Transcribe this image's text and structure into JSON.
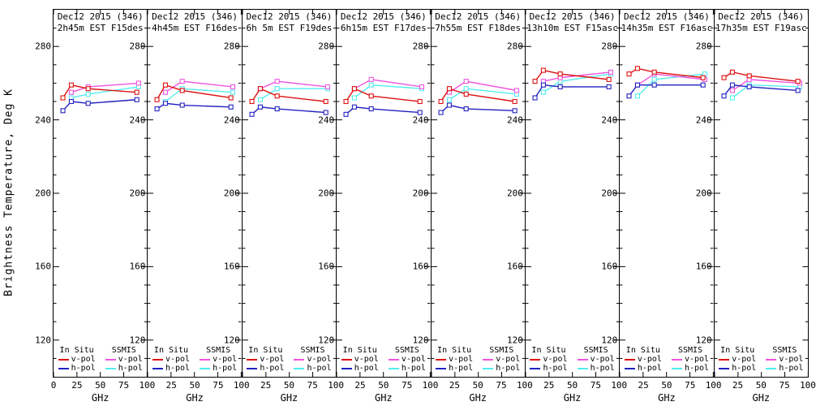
{
  "figure": {
    "ylabel": "Brightness Temperature, Deg K",
    "xlabel": "GHz",
    "colors": {
      "insitu_v": "#dd1111",
      "insitu_h": "#2222bf",
      "ssmis_v": "#ee55e0",
      "ssmis_h": "#55eded",
      "axis": "#000000",
      "background": "#ffffff"
    },
    "legend": {
      "col1_header": "In Situ",
      "col2_header": "SSMIS",
      "vpol_label": "v-pol",
      "hpol_label": "h-pol"
    }
  },
  "chart_data": {
    "type": "line",
    "title": "",
    "xlabel": "GHz",
    "ylabel": "Brightness Temperature, Deg K",
    "xlim": [
      0,
      100
    ],
    "ylim": [
      100,
      300
    ],
    "xticks": [
      0,
      25,
      50,
      75,
      100
    ],
    "yticks": [
      120,
      160,
      200,
      240,
      280
    ],
    "y_minor_step": 10,
    "grid": false,
    "legend_position": "bottom-inside-each-panel",
    "insitu_freqs_ghz": [
      10,
      19,
      37,
      89
    ],
    "ssmis_freqs_ghz": [
      19,
      37,
      91
    ],
    "panels": [
      {
        "title_line1": "Dec12 2015 (346)",
        "title_line2": "2h45m EST F15des",
        "series": {
          "insitu_v": [
            252,
            259,
            257,
            255
          ],
          "insitu_h": [
            245,
            250,
            249,
            251
          ],
          "ssmis_v": [
            255,
            258,
            260
          ],
          "ssmis_h": [
            252,
            254,
            258
          ]
        }
      },
      {
        "title_line1": "Dec12 2015 (346)",
        "title_line2": "4h45m EST F16des",
        "series": {
          "insitu_v": [
            251,
            259,
            256,
            252
          ],
          "insitu_h": [
            246,
            249,
            248,
            247
          ],
          "ssmis_v": [
            255,
            261,
            258
          ],
          "ssmis_h": [
            250,
            257,
            255
          ]
        }
      },
      {
        "title_line1": "Dec12 2015 (346)",
        "title_line2": "6h 5m EST F19des",
        "series": {
          "insitu_v": [
            250,
            257,
            253,
            250
          ],
          "insitu_h": [
            243,
            247,
            246,
            244
          ],
          "ssmis_v": [
            257,
            261,
            258
          ],
          "ssmis_h": [
            251,
            257,
            257
          ]
        }
      },
      {
        "title_line1": "Dec12 2015 (346)",
        "title_line2": "6h15m EST F17des",
        "series": {
          "insitu_v": [
            250,
            257,
            253,
            250
          ],
          "insitu_h": [
            243,
            247,
            246,
            244
          ],
          "ssmis_v": [
            257,
            262,
            258
          ],
          "ssmis_h": [
            252,
            259,
            257
          ]
        }
      },
      {
        "title_line1": "Dec12 2015 (346)",
        "title_line2": "7h55m EST F18des",
        "series": {
          "insitu_v": [
            250,
            257,
            254,
            250
          ],
          "insitu_h": [
            244,
            248,
            246,
            245
          ],
          "ssmis_v": [
            255,
            261,
            256
          ],
          "ssmis_h": [
            251,
            257,
            254
          ]
        }
      },
      {
        "title_line1": "Dec12 2015 (346)",
        "title_line2": "13h10m EST F15asc",
        "series": {
          "insitu_v": [
            261,
            267,
            265,
            262
          ],
          "insitu_h": [
            252,
            259,
            258,
            258
          ],
          "ssmis_v": [
            261,
            263,
            266
          ],
          "ssmis_h": [
            255,
            261,
            265
          ]
        }
      },
      {
        "title_line1": "Dec12 2015 (346)",
        "title_line2": "14h35m EST F16asc",
        "series": {
          "insitu_v": [
            265,
            268,
            266,
            263
          ],
          "insitu_h": [
            253,
            259,
            259,
            259
          ],
          "ssmis_v": [
            259,
            265,
            262
          ],
          "ssmis_h": [
            253,
            262,
            265
          ]
        }
      },
      {
        "title_line1": "Dec12 2015 (346)",
        "title_line2": "17h35m EST F19asc",
        "series": {
          "insitu_v": [
            263,
            266,
            264,
            261
          ],
          "insitu_h": [
            253,
            259,
            258,
            256
          ],
          "ssmis_v": [
            256,
            262,
            260
          ],
          "ssmis_h": [
            252,
            259,
            258
          ]
        }
      }
    ]
  }
}
